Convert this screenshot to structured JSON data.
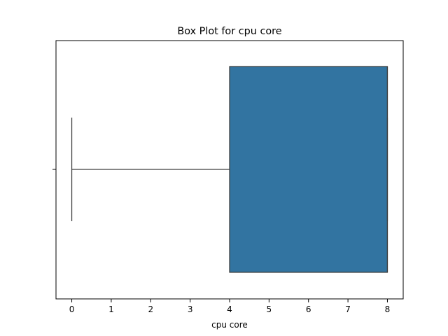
{
  "chart_data": {
    "type": "box",
    "title": "Box Plot for cpu core",
    "xlabel": "cpu core",
    "ylabel": "",
    "orientation": "horizontal",
    "xlim": [
      -0.4,
      8.4
    ],
    "xticks": [
      0,
      1,
      2,
      3,
      4,
      5,
      6,
      7,
      8
    ],
    "xtick_labels": [
      "0",
      "1",
      "2",
      "3",
      "4",
      "5",
      "6",
      "7",
      "8"
    ],
    "grid": false,
    "box": {
      "whisker_low": 0,
      "q1": 4,
      "median": 8,
      "q3": 8,
      "whisker_high": 8,
      "outliers": []
    },
    "colors": {
      "box_fill": "#3274a1",
      "line": "#3d3d3d",
      "axes": "#000000"
    }
  }
}
